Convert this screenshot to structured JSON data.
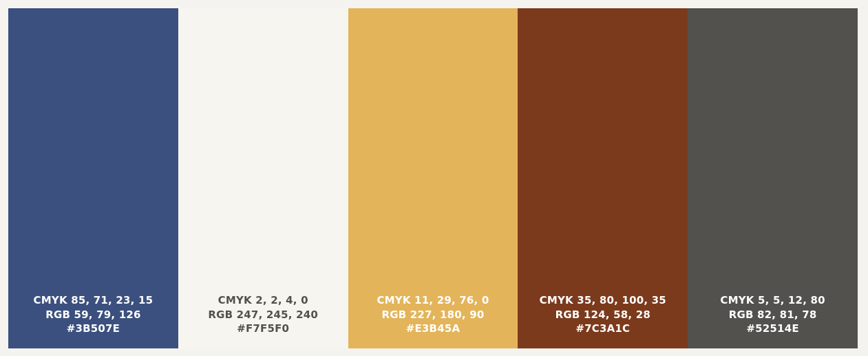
{
  "palette": {
    "swatches": [
      {
        "color": "#3B507E",
        "text_color": "#FFFFFF",
        "cmyk": "CMYK 85, 71, 23, 15",
        "rgb": "RGB 59, 79, 126",
        "hex": "#3B507E"
      },
      {
        "color": "#F7F5F0",
        "text_color": "#52514E",
        "cmyk": "CMYK 2, 2, 4, 0",
        "rgb": "RGB 247, 245, 240",
        "hex": "#F7F5F0"
      },
      {
        "color": "#E3B45A",
        "text_color": "#FFFFFF",
        "cmyk": "CMYK 11, 29, 76, 0",
        "rgb": "RGB 227, 180, 90",
        "hex": "#E3B45A"
      },
      {
        "color": "#7C3A1C",
        "text_color": "#FFFFFF",
        "cmyk": "CMYK 35, 80, 100, 35",
        "rgb": "RGB 124, 58, 28",
        "hex": "#7C3A1C"
      },
      {
        "color": "#52514E",
        "text_color": "#FFFFFF",
        "cmyk": "CMYK 5, 5, 12, 80",
        "rgb": "RGB 82, 81, 78",
        "hex": "#52514E"
      }
    ]
  }
}
